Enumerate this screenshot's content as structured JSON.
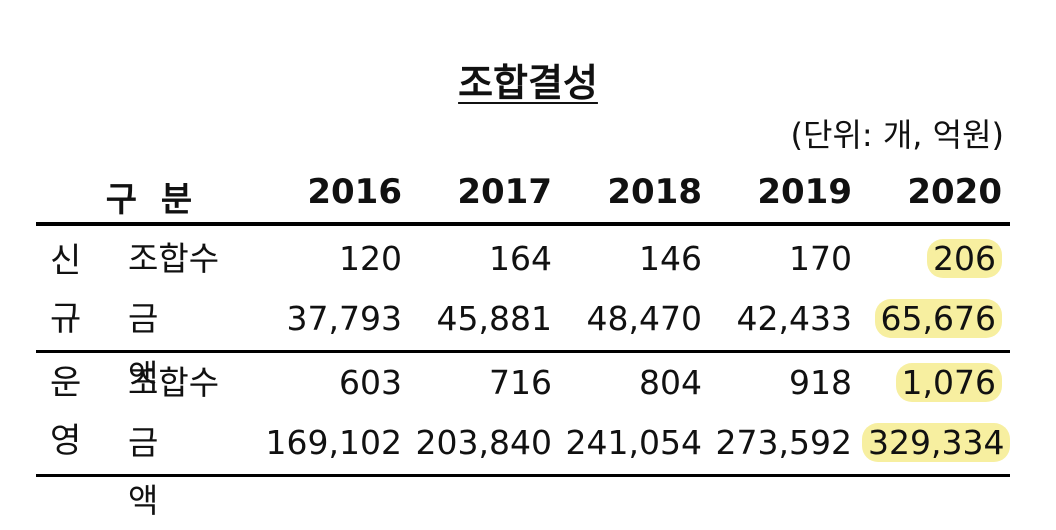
{
  "title": "조합결성",
  "unit": "(단위: 개, 억원)",
  "header": {
    "category": "구  분",
    "years": [
      "2016",
      "2017",
      "2018",
      "2019",
      "2020"
    ]
  },
  "groups": [
    {
      "label_top": "신",
      "label_bottom": "규",
      "rows": [
        {
          "label": "조합수",
          "values": [
            "120",
            "164",
            "146",
            "170",
            "206"
          ]
        },
        {
          "label": "금  액",
          "values": [
            "37,793",
            "45,881",
            "48,470",
            "42,433",
            "65,676"
          ]
        }
      ]
    },
    {
      "label_top": "운",
      "label_bottom": "영",
      "rows": [
        {
          "label": "조합수",
          "values": [
            "603",
            "716",
            "804",
            "918",
            "1,076"
          ]
        },
        {
          "label": "금  액",
          "values": [
            "169,102",
            "203,840",
            "241,054",
            "273,592",
            "329,334"
          ]
        }
      ]
    }
  ],
  "highlight_color": "#f7efa0"
}
